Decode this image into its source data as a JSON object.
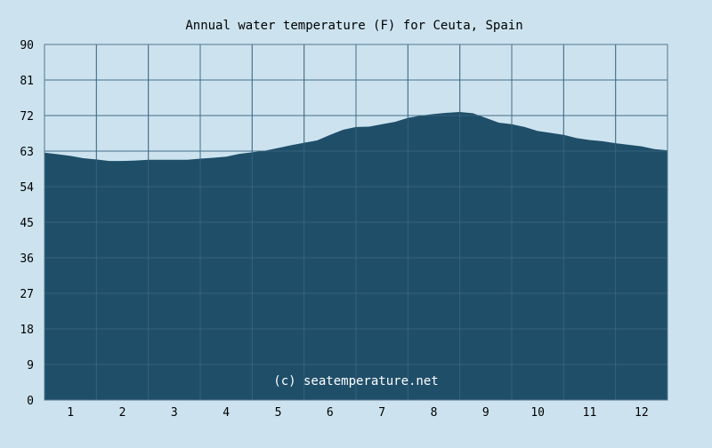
{
  "chart_data": {
    "type": "area",
    "title": "Annual water temperature (F) for Ceuta, Spain",
    "watermark": "(c) seatemperature.net",
    "xlabel": "",
    "ylabel": "",
    "x_ticks": [
      "1",
      "2",
      "3",
      "4",
      "5",
      "6",
      "7",
      "8",
      "9",
      "10",
      "11",
      "12"
    ],
    "y_ticks": [
      "0",
      "9",
      "18",
      "27",
      "36",
      "45",
      "54",
      "63",
      "72",
      "81",
      "90"
    ],
    "ylim": [
      0,
      90
    ],
    "xlim": [
      0.5,
      12.5
    ],
    "grid": true,
    "legend": "none",
    "colors": {
      "background": "#cce3ef",
      "plot": "#1f4e69",
      "grid": "#56778c",
      "text": "#000000",
      "watermark": "#ffffff"
    },
    "series": [
      {
        "x": [
          0.5,
          0.75,
          1.0,
          1.25,
          1.5,
          1.75,
          2.0,
          2.25,
          2.5,
          2.75,
          3.0,
          3.25,
          3.5,
          3.75,
          4.0,
          4.25,
          4.5,
          4.75,
          5.0,
          5.25,
          5.5,
          5.75,
          6.0,
          6.25,
          6.5,
          6.75,
          7.0,
          7.25,
          7.5,
          7.75,
          8.0,
          8.25,
          8.5,
          8.75,
          9.0,
          9.25,
          9.5,
          9.75,
          10.0,
          10.25,
          10.5,
          10.75,
          11.0,
          11.25,
          11.5,
          11.75,
          12.0,
          12.25,
          12.5
        ],
        "values": [
          62.6,
          62.2,
          61.8,
          61.2,
          60.9,
          60.5,
          60.5,
          60.6,
          60.8,
          60.8,
          60.8,
          60.8,
          61.1,
          61.3,
          61.6,
          62.3,
          62.7,
          63.1,
          63.8,
          64.5,
          65.1,
          65.7,
          67.1,
          68.4,
          69.1,
          69.2,
          69.8,
          70.4,
          71.4,
          72.0,
          72.4,
          72.7,
          72.9,
          72.6,
          71.4,
          70.2,
          69.8,
          69.1,
          68.1,
          67.6,
          67.1,
          66.3,
          65.8,
          65.5,
          65.0,
          64.6,
          64.2,
          63.5,
          63.2
        ]
      }
    ]
  }
}
